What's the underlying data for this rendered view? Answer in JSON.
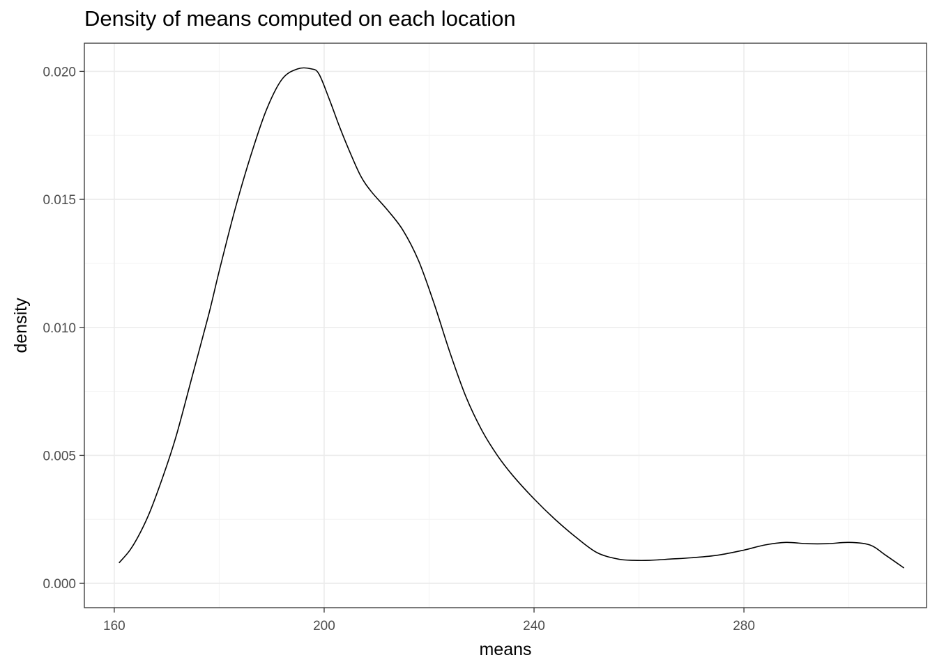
{
  "chart_data": {
    "type": "line",
    "title": "Density of means computed on each location",
    "xlabel": "means",
    "ylabel": "density",
    "xlim": [
      154.3,
      314.8
    ],
    "ylim": [
      -0.00095,
      0.0211
    ],
    "x_ticks": [
      160,
      200,
      240,
      280
    ],
    "x_tick_labels": [
      "160",
      "200",
      "240",
      "280"
    ],
    "y_ticks": [
      0.0,
      0.005,
      0.01,
      0.015,
      0.02
    ],
    "y_tick_labels": [
      "0.000",
      "0.005",
      "0.010",
      "0.015",
      "0.020"
    ],
    "grid": true,
    "legend": "none",
    "colors": {
      "line": "#000000",
      "grid_major": "#ebebeb",
      "grid_minor": "#f3f3f3",
      "panel_border": "#333333"
    },
    "series": [
      {
        "x": [
          160.9,
          163,
          165,
          167,
          170,
          172,
          175,
          178,
          180,
          183,
          186,
          189,
          192,
          195,
          197.5,
          199,
          201,
          203,
          205,
          207,
          209,
          212,
          215,
          218,
          221,
          224,
          227,
          230,
          233,
          236,
          240,
          244,
          248,
          252,
          256,
          259,
          262,
          266,
          270,
          275,
          280,
          284,
          288,
          292,
          296,
          300,
          304,
          307,
          310.5
        ],
        "y": [
          0.0008,
          0.0013,
          0.002,
          0.0029,
          0.0046,
          0.0059,
          0.0082,
          0.0105,
          0.0122,
          0.0146,
          0.0167,
          0.0185,
          0.0197,
          0.0201,
          0.0201,
          0.0199,
          0.0189,
          0.0178,
          0.0168,
          0.0159,
          0.0153,
          0.0146,
          0.0138,
          0.0126,
          0.0109,
          0.009,
          0.0073,
          0.006,
          0.005,
          0.0042,
          0.0033,
          0.0025,
          0.0018,
          0.0012,
          0.00095,
          0.0009,
          0.0009,
          0.00095,
          0.001,
          0.0011,
          0.0013,
          0.0015,
          0.0016,
          0.00155,
          0.00155,
          0.0016,
          0.0015,
          0.0011,
          0.0006
        ]
      }
    ]
  }
}
